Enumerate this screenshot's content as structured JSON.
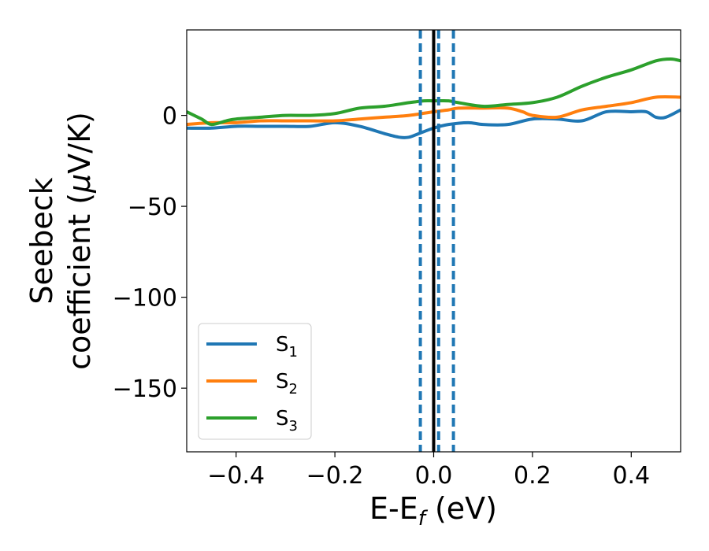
{
  "chart_data": {
    "type": "line",
    "title": "",
    "xlabel": "E-E",
    "xlabel_sub": "f",
    "xlabel_unit": " (eV)",
    "ylabel_line1": "Seebeck",
    "ylabel_line2": "coefficient  (",
    "ylabel_mu": "μ",
    "ylabel_unit": "V/K)",
    "xlim": [
      -0.5,
      0.5
    ],
    "ylim": [
      -185,
      47
    ],
    "xticks": [
      -0.4,
      -0.2,
      0.0,
      0.2,
      0.4
    ],
    "xtick_labels": [
      "−0.4",
      "−0.2",
      "0.0",
      "0.2",
      "0.4"
    ],
    "yticks": [
      0,
      -50,
      -100,
      -150
    ],
    "ytick_labels": [
      "0",
      "−50",
      "−100",
      "−150"
    ],
    "grid": false,
    "legend_position": "lower-left",
    "fermi_line": {
      "x": 0.0,
      "color": "#000000",
      "style": "solid"
    },
    "dashed_lines": [
      {
        "x": -0.027,
        "color": "#1f77b4"
      },
      {
        "x": 0.01,
        "color": "#1f77b4"
      },
      {
        "x": 0.04,
        "color": "#1f77b4"
      }
    ],
    "series": [
      {
        "name": "S",
        "name_sub": "1",
        "color": "#1f77b4",
        "x": [
          -0.5,
          -0.45,
          -0.4,
          -0.35,
          -0.3,
          -0.25,
          -0.2,
          -0.15,
          -0.1,
          -0.07,
          -0.05,
          -0.03,
          0.0,
          0.03,
          0.07,
          0.1,
          0.15,
          0.2,
          0.25,
          0.3,
          0.35,
          0.4,
          0.43,
          0.45,
          0.47,
          0.5
        ],
        "y": [
          -7,
          -7,
          -6,
          -6,
          -6,
          -6,
          -4,
          -6,
          -10,
          -12,
          -12,
          -10,
          -7,
          -5,
          -4,
          -5,
          -5,
          -2,
          -2,
          -3,
          2,
          2,
          2,
          -1,
          -1,
          3
        ]
      },
      {
        "name": "S",
        "name_sub": "2",
        "color": "#ff7f0e",
        "x": [
          -0.5,
          -0.45,
          -0.4,
          -0.35,
          -0.3,
          -0.25,
          -0.2,
          -0.15,
          -0.1,
          -0.05,
          0.0,
          0.03,
          0.05,
          0.1,
          0.15,
          0.18,
          0.2,
          0.25,
          0.3,
          0.35,
          0.4,
          0.45,
          0.5
        ],
        "y": [
          -5,
          -4,
          -4,
          -3,
          -3,
          -3,
          -3,
          -2,
          -1,
          0,
          2,
          3,
          4,
          4,
          4,
          2,
          0,
          -1,
          3,
          5,
          7,
          10,
          10
        ]
      },
      {
        "name": "S",
        "name_sub": "3",
        "color": "#2ca02c",
        "x": [
          -0.5,
          -0.47,
          -0.45,
          -0.42,
          -0.4,
          -0.35,
          -0.3,
          -0.25,
          -0.2,
          -0.15,
          -0.1,
          -0.05,
          -0.02,
          0.0,
          0.03,
          0.05,
          0.1,
          0.15,
          0.2,
          0.25,
          0.3,
          0.35,
          0.4,
          0.45,
          0.48,
          0.5
        ],
        "y": [
          2,
          -2,
          -5,
          -3,
          -2,
          -1,
          0,
          0,
          1,
          4,
          5,
          7,
          8,
          8,
          8,
          7,
          5,
          6,
          7,
          10,
          16,
          21,
          25,
          30,
          31,
          30
        ]
      }
    ]
  }
}
